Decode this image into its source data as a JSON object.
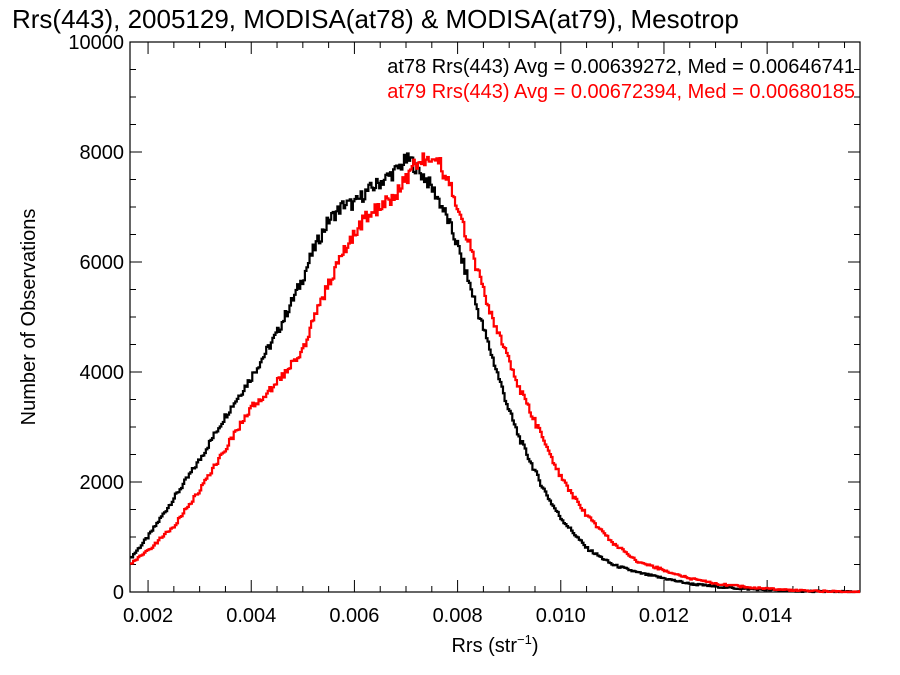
{
  "chart_data": {
    "type": "line",
    "step": true,
    "title": "Rrs(443), 2005129, MODISA(at78) & MODISA(at79), Mesotrop",
    "xlabel_main": "Rrs (str",
    "xlabel_sup": "−1",
    "xlabel_end": ")",
    "ylabel": "Number of Observations",
    "xlim": [
      0.00165,
      0.0158
    ],
    "ylim": [
      0,
      10000
    ],
    "xticks": [
      0.002,
      0.004,
      0.006,
      0.008,
      0.01,
      0.012,
      0.014
    ],
    "xtick_labels": [
      "0.002",
      "0.004",
      "0.006",
      "0.008",
      "0.010",
      "0.012",
      "0.014"
    ],
    "yticks": [
      0,
      2000,
      4000,
      6000,
      8000,
      10000
    ],
    "ytick_labels": [
      "0",
      "2000",
      "4000",
      "6000",
      "8000",
      "10000"
    ],
    "grid": false,
    "legend_position": "top-right",
    "series": [
      {
        "name": "at78",
        "color": "#000000",
        "legend": "at78 Rrs(443) Avg = 0.00639272, Med = 0.00646741",
        "x": [
          0.00165,
          0.002,
          0.0025,
          0.003,
          0.0035,
          0.004,
          0.0045,
          0.005,
          0.0052,
          0.0055,
          0.0058,
          0.006,
          0.0062,
          0.0065,
          0.0068,
          0.007,
          0.0071,
          0.0072,
          0.0074,
          0.0076,
          0.0078,
          0.008,
          0.0082,
          0.0084,
          0.0086,
          0.0088,
          0.009,
          0.0092,
          0.0094,
          0.0096,
          0.0098,
          0.01,
          0.0105,
          0.011,
          0.0115,
          0.012,
          0.0125,
          0.013,
          0.0135,
          0.014,
          0.0145,
          0.015,
          0.0158
        ],
        "y": [
          600,
          1000,
          1700,
          2400,
          3200,
          3900,
          4700,
          5700,
          6200,
          6750,
          7050,
          7050,
          7250,
          7450,
          7650,
          7850,
          7850,
          7700,
          7500,
          7200,
          6800,
          6300,
          5700,
          5100,
          4500,
          3900,
          3300,
          2800,
          2400,
          2000,
          1650,
          1350,
          800,
          500,
          350,
          250,
          150,
          100,
          60,
          40,
          20,
          10,
          0
        ]
      },
      {
        "name": "at79",
        "color": "#ff0000",
        "legend": "at79 Rrs(443) Avg = 0.00672394, Med = 0.00680185",
        "x": [
          0.00165,
          0.002,
          0.0025,
          0.003,
          0.0035,
          0.004,
          0.0045,
          0.005,
          0.0052,
          0.0055,
          0.0058,
          0.006,
          0.0062,
          0.0065,
          0.0068,
          0.007,
          0.0072,
          0.0074,
          0.0076,
          0.0078,
          0.008,
          0.0082,
          0.0084,
          0.0086,
          0.0088,
          0.009,
          0.0092,
          0.0094,
          0.0096,
          0.0098,
          0.01,
          0.0102,
          0.0105,
          0.011,
          0.0115,
          0.012,
          0.0125,
          0.013,
          0.0135,
          0.014,
          0.0145,
          0.015,
          0.0158
        ],
        "y": [
          500,
          750,
          1200,
          1850,
          2600,
          3350,
          3800,
          4400,
          4900,
          5600,
          6200,
          6500,
          6800,
          7000,
          7200,
          7500,
          7800,
          7900,
          7900,
          7500,
          7000,
          6400,
          5800,
          5200,
          4700,
          4200,
          3700,
          3300,
          2900,
          2500,
          2100,
          1800,
          1400,
          900,
          550,
          400,
          250,
          150,
          100,
          60,
          30,
          15,
          0
        ]
      }
    ]
  }
}
